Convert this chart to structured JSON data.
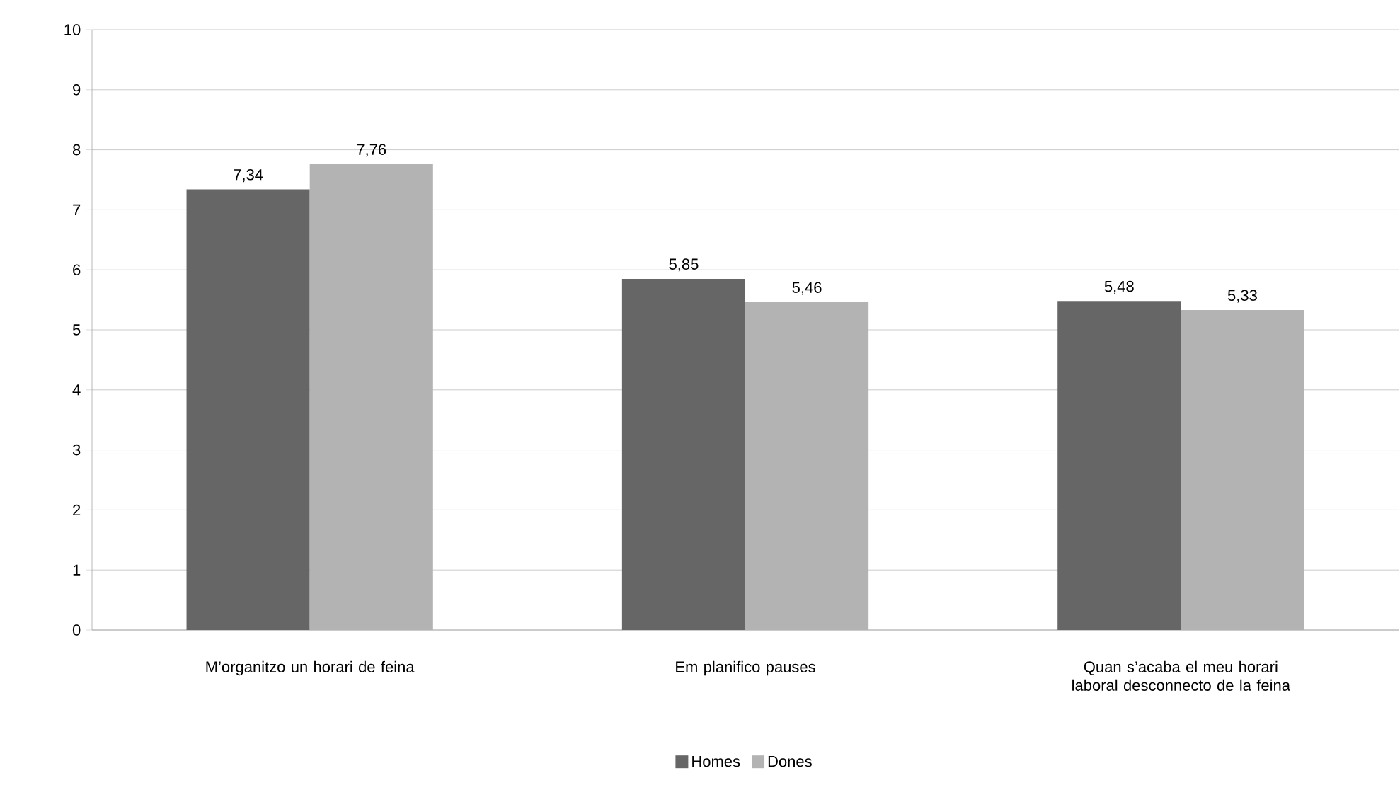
{
  "chart_data": {
    "type": "bar",
    "categories": [
      "M’organitzo un horari de feina",
      "Em planifico pauses",
      "Quan s’acaba el meu horari laboral desconnecto de la feina"
    ],
    "series": [
      {
        "name": "Homes",
        "color": "#666666",
        "values": [
          7.34,
          5.85,
          5.48
        ],
        "value_labels": [
          "7,34",
          "5,85",
          "5,48"
        ]
      },
      {
        "name": "Dones",
        "color": "#b3b3b3",
        "values": [
          7.76,
          5.46,
          5.33
        ],
        "value_labels": [
          "7,76",
          "5,46",
          "5,33"
        ]
      }
    ],
    "ylim": [
      0,
      10
    ],
    "yticks": [
      0,
      1,
      2,
      3,
      4,
      5,
      6,
      7,
      8,
      9,
      10
    ],
    "grid": "y",
    "legend": "bottom"
  }
}
